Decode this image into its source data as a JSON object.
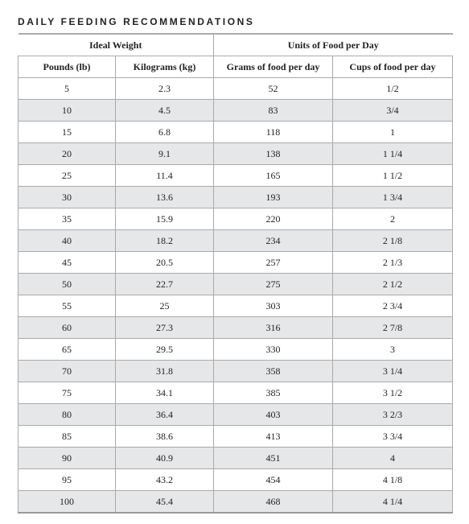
{
  "header": {
    "title": "DAILY FEEDING RECOMMENDATIONS"
  },
  "table": {
    "groups": [
      "Ideal Weight",
      "Units of Food per Day"
    ],
    "columns": [
      "Pounds (lb)",
      "Kilograms (kg)",
      "Grams of food per day",
      "Cups of food per day"
    ],
    "rows": [
      [
        "5",
        "2.3",
        "52",
        "1/2"
      ],
      [
        "10",
        "4.5",
        "83",
        "3/4"
      ],
      [
        "15",
        "6.8",
        "118",
        "1"
      ],
      [
        "20",
        "9.1",
        "138",
        "1 1/4"
      ],
      [
        "25",
        "11.4",
        "165",
        "1 1/2"
      ],
      [
        "30",
        "13.6",
        "193",
        "1 3/4"
      ],
      [
        "35",
        "15.9",
        "220",
        "2"
      ],
      [
        "40",
        "18.2",
        "234",
        "2 1/8"
      ],
      [
        "45",
        "20.5",
        "257",
        "2 1/3"
      ],
      [
        "50",
        "22.7",
        "275",
        "2 1/2"
      ],
      [
        "55",
        "25",
        "303",
        "2 3/4"
      ],
      [
        "60",
        "27.3",
        "316",
        "2 7/8"
      ],
      [
        "65",
        "29.5",
        "330",
        "3"
      ],
      [
        "70",
        "31.8",
        "358",
        "3 1/4"
      ],
      [
        "75",
        "34.1",
        "385",
        "3 1/2"
      ],
      [
        "80",
        "36.4",
        "403",
        "3 2/3"
      ],
      [
        "85",
        "38.6",
        "413",
        "3 3/4"
      ],
      [
        "90",
        "40.9",
        "451",
        "4"
      ],
      [
        "95",
        "43.2",
        "454",
        "4 1/8"
      ],
      [
        "100",
        "45.4",
        "468",
        "4 1/4"
      ]
    ]
  }
}
